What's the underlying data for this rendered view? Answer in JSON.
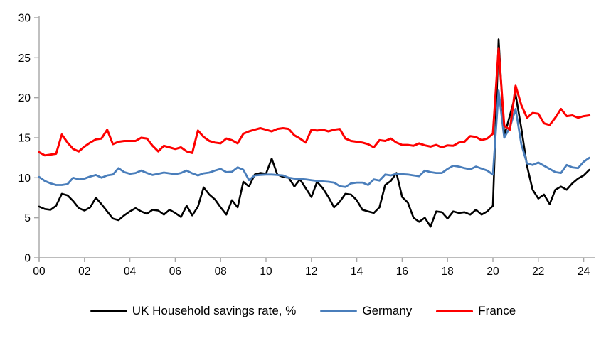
{
  "chart_data": {
    "type": "line",
    "title": "",
    "xlabel": "",
    "ylabel": "",
    "grid": false,
    "legend_position": "bottom",
    "axis_color": "#a6a6a6",
    "ylim": [
      0,
      30
    ],
    "xlim": [
      2000,
      2024.5
    ],
    "y_tick_values": [
      0,
      5,
      10,
      15,
      20,
      25,
      30
    ],
    "y_tick_labels": [
      "0",
      "5",
      "10",
      "15",
      "20",
      "25",
      "30"
    ],
    "x_tick_years": [
      2000,
      2002,
      2004,
      2006,
      2008,
      2010,
      2012,
      2014,
      2016,
      2018,
      2020,
      2022,
      2024
    ],
    "x_tick_labels": [
      "00",
      "02",
      "04",
      "06",
      "08",
      "10",
      "12",
      "14",
      "16",
      "18",
      "20",
      "22",
      "24"
    ],
    "x_start_year": 2000,
    "x_step_years": 0.25,
    "series": [
      {
        "name": "UK Household savings rate, %",
        "color": "#000000",
        "values": [
          6.4,
          6.1,
          6.0,
          6.5,
          8.0,
          7.8,
          7.1,
          6.2,
          5.9,
          6.3,
          7.5,
          6.7,
          5.8,
          4.9,
          4.7,
          5.3,
          5.8,
          6.2,
          5.8,
          5.5,
          6.0,
          5.9,
          5.4,
          6.0,
          5.6,
          5.1,
          6.5,
          5.3,
          6.4,
          8.8,
          7.9,
          7.3,
          6.3,
          5.4,
          7.2,
          6.3,
          9.5,
          8.9,
          10.4,
          10.6,
          10.5,
          12.4,
          10.4,
          10.1,
          10.0,
          8.9,
          9.8,
          8.7,
          7.6,
          9.5,
          8.7,
          7.6,
          6.3,
          7.0,
          8.0,
          7.9,
          7.2,
          6.0,
          5.8,
          5.6,
          6.3,
          9.1,
          9.6,
          10.6,
          7.6,
          6.9,
          5.0,
          4.5,
          5.0,
          3.9,
          5.8,
          5.7,
          4.9,
          5.8,
          5.6,
          5.7,
          5.4,
          6.0,
          5.4,
          5.8,
          6.5,
          27.3,
          15.2,
          17.8,
          20.4,
          16.2,
          11.5,
          8.5,
          7.4,
          7.9,
          6.7,
          8.5,
          8.9,
          8.5,
          9.3,
          9.9,
          10.3,
          11.0
        ]
      },
      {
        "name": "Germany",
        "color": "#4a7ebb",
        "values": [
          10.1,
          9.6,
          9.3,
          9.1,
          9.1,
          9.2,
          10.0,
          9.8,
          9.9,
          10.15,
          10.35,
          10.0,
          10.3,
          10.4,
          11.2,
          10.7,
          10.5,
          10.6,
          10.9,
          10.6,
          10.35,
          10.5,
          10.65,
          10.55,
          10.45,
          10.6,
          10.9,
          10.55,
          10.3,
          10.55,
          10.65,
          10.9,
          11.1,
          10.7,
          10.75,
          11.3,
          11.0,
          9.7,
          10.3,
          10.35,
          10.4,
          10.4,
          10.35,
          10.3,
          10.0,
          9.9,
          9.85,
          9.8,
          9.7,
          9.6,
          9.55,
          9.5,
          9.4,
          8.95,
          8.85,
          9.3,
          9.4,
          9.4,
          9.1,
          9.8,
          9.65,
          10.4,
          10.3,
          10.5,
          10.45,
          10.4,
          10.3,
          10.2,
          10.9,
          10.7,
          10.6,
          10.6,
          11.1,
          11.5,
          11.4,
          11.2,
          11.05,
          11.4,
          11.15,
          10.9,
          10.4,
          20.9,
          15.0,
          16.3,
          18.6,
          14.2,
          11.8,
          11.6,
          11.9,
          11.5,
          11.1,
          10.7,
          10.6,
          11.6,
          11.3,
          11.2,
          12.0,
          12.5
        ]
      },
      {
        "name": "France",
        "color": "#fe0000",
        "values": [
          13.2,
          12.8,
          12.9,
          13.0,
          15.4,
          14.4,
          13.6,
          13.3,
          13.9,
          14.4,
          14.8,
          14.9,
          16.0,
          14.2,
          14.5,
          14.6,
          14.6,
          14.6,
          15.0,
          14.9,
          14.0,
          13.3,
          14.0,
          13.8,
          13.6,
          13.8,
          13.3,
          13.1,
          15.9,
          15.1,
          14.6,
          14.4,
          14.3,
          14.9,
          14.7,
          14.3,
          15.5,
          15.8,
          16.0,
          16.2,
          16.0,
          15.8,
          16.1,
          16.2,
          16.1,
          15.3,
          14.9,
          14.4,
          16.0,
          15.9,
          16.0,
          15.8,
          16.0,
          16.1,
          14.9,
          14.6,
          14.5,
          14.4,
          14.2,
          13.8,
          14.7,
          14.6,
          14.9,
          14.4,
          14.1,
          14.1,
          14.0,
          14.3,
          14.05,
          13.9,
          14.1,
          13.8,
          14.05,
          14.0,
          14.4,
          14.5,
          15.2,
          15.1,
          14.7,
          14.9,
          15.5,
          26.2,
          16.5,
          16.0,
          21.5,
          19.1,
          17.5,
          18.1,
          18.0,
          16.8,
          16.6,
          17.5,
          18.6,
          17.7,
          17.8,
          17.5,
          17.7,
          17.8
        ]
      }
    ]
  }
}
